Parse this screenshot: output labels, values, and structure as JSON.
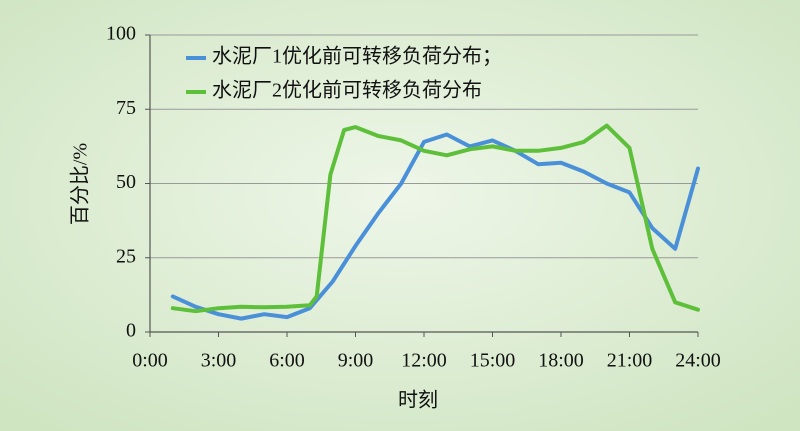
{
  "chart_data": {
    "type": "line",
    "x_label": "时刻",
    "y_label": "百分比/%",
    "xlim": [
      0,
      24
    ],
    "xticks": [
      {
        "value": 0,
        "label": "0:00"
      },
      {
        "value": 3,
        "label": "3:00"
      },
      {
        "value": 6,
        "label": "6:00"
      },
      {
        "value": 9,
        "label": "9:00"
      },
      {
        "value": 12,
        "label": "12:00"
      },
      {
        "value": 15,
        "label": "15:00"
      },
      {
        "value": 18,
        "label": "18:00"
      },
      {
        "value": 21,
        "label": "21:00"
      },
      {
        "value": 24,
        "label": "24:00"
      }
    ],
    "ylim": [
      0,
      100
    ],
    "yticks": [
      0,
      25,
      50,
      75,
      100
    ],
    "grid": true,
    "legend": "top-left",
    "series": [
      {
        "name": "水泥厂1优化前可转移负荷分布；",
        "color": "#4a90d9",
        "x": [
          1,
          2,
          3,
          4,
          5,
          6,
          7,
          8,
          9,
          10,
          11,
          12,
          13,
          14,
          15,
          16,
          17,
          18,
          19,
          20,
          21,
          22,
          23,
          24
        ],
        "values": [
          12,
          8.5,
          6,
          4.5,
          6,
          5,
          8,
          17,
          29,
          40,
          50,
          64,
          66.5,
          62.5,
          64.5,
          61,
          56.5,
          57,
          54,
          50,
          47,
          35,
          28,
          55
        ]
      },
      {
        "name": "水泥厂2优化前可转移负荷分布",
        "color": "#5dbf3a",
        "x": [
          1,
          2,
          3,
          4,
          5,
          6,
          7,
          7.3,
          7.9,
          8.5,
          9,
          10,
          11,
          12,
          13,
          14,
          15,
          16,
          17,
          18,
          19,
          20,
          21,
          21.5,
          22,
          23,
          24
        ],
        "values": [
          8,
          7,
          8,
          8.5,
          8.3,
          8.5,
          9,
          12,
          53,
          68,
          69,
          66,
          64.5,
          61,
          59.5,
          61.5,
          62.5,
          61,
          61,
          62,
          64,
          69.5,
          62,
          45,
          28,
          10,
          7.5
        ]
      }
    ]
  }
}
